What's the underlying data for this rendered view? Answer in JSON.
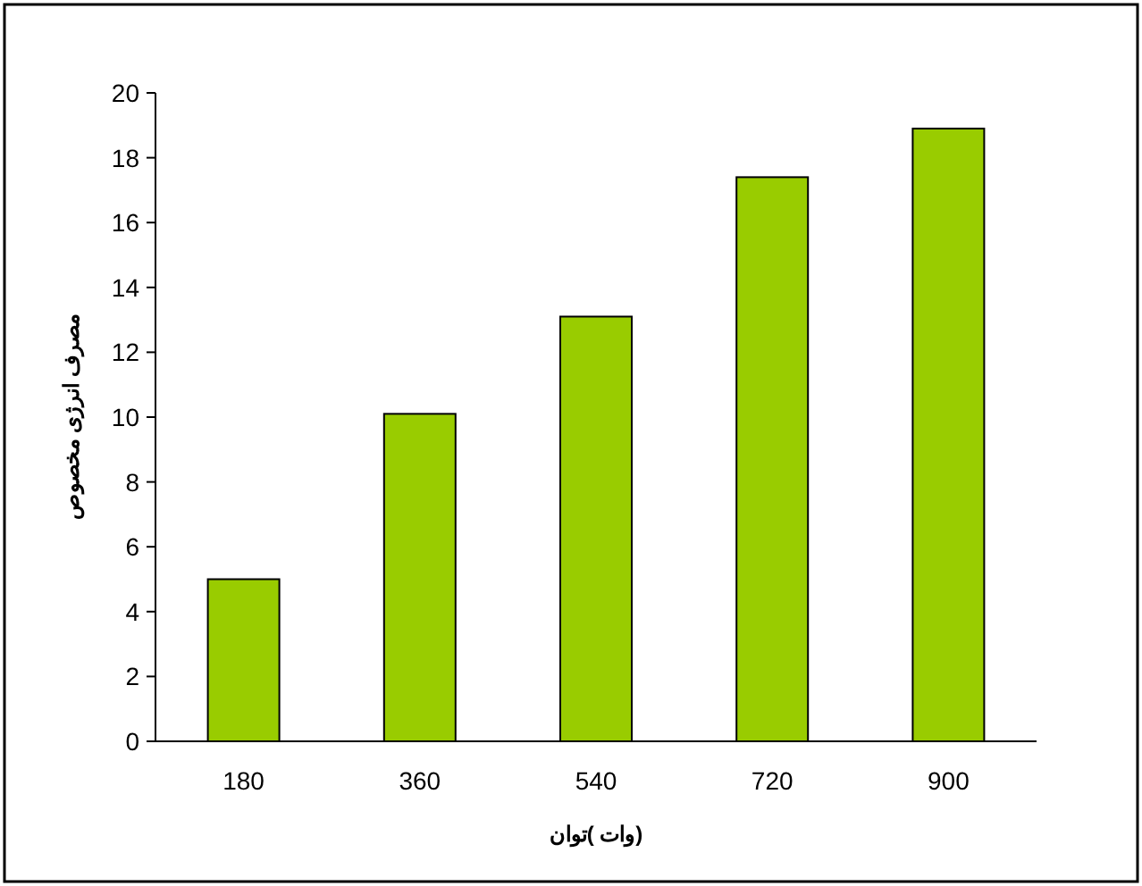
{
  "chart_data": {
    "type": "bar",
    "xlabel": "(وات )توان",
    "ylabel": "مصرف انرژی مخصوص",
    "categories": [
      "180",
      "360",
      "540",
      "720",
      "900"
    ],
    "values": [
      5.0,
      10.1,
      13.1,
      17.4,
      18.9
    ],
    "color": "#99cc00",
    "ylim": [
      0,
      20
    ],
    "yticks": [
      0,
      2,
      4,
      6,
      8,
      10,
      12,
      14,
      16,
      18,
      20
    ],
    "grid": false
  }
}
